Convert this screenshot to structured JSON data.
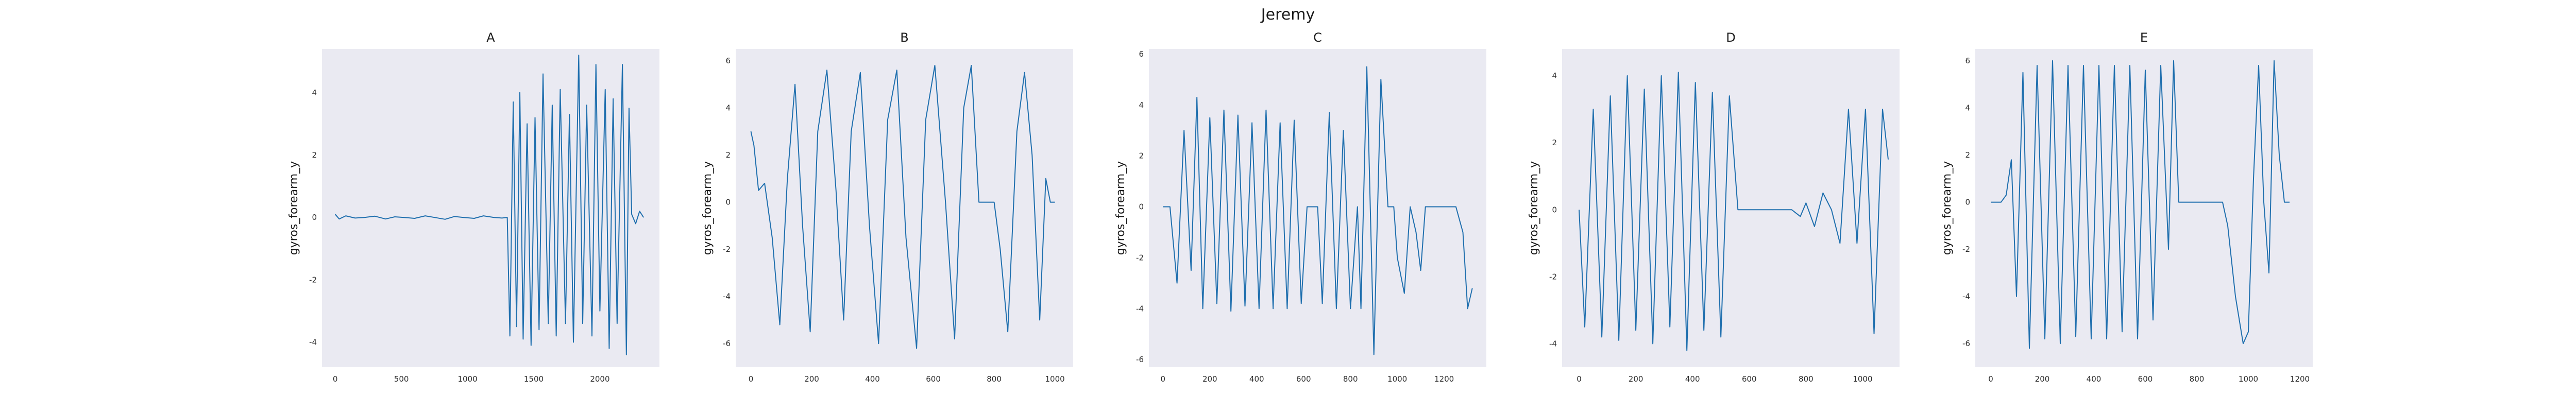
{
  "figure": {
    "title": "Jeremy"
  },
  "colors": {
    "panel_background": "#eaeaf2",
    "line": "#1f6fae"
  },
  "chart_data": [
    {
      "type": "line",
      "title": "A",
      "ylabel": "gyros_forearm_y",
      "xlabel": "",
      "grid": false,
      "xlim": [
        -100,
        2450
      ],
      "ylim": [
        -4.8,
        5.4
      ],
      "xticks": [
        0,
        500,
        1000,
        1500,
        2000
      ],
      "yticks": [
        -4,
        -2,
        0,
        2,
        4
      ],
      "points": [
        [
          0,
          0.1
        ],
        [
          30,
          -0.05
        ],
        [
          80,
          0.05
        ],
        [
          150,
          -0.02
        ],
        [
          220,
          0.0
        ],
        [
          300,
          0.04
        ],
        [
          380,
          -0.05
        ],
        [
          450,
          0.02
        ],
        [
          520,
          0.0
        ],
        [
          600,
          -0.03
        ],
        [
          680,
          0.05
        ],
        [
          750,
          0.0
        ],
        [
          830,
          -0.06
        ],
        [
          900,
          0.03
        ],
        [
          970,
          0.0
        ],
        [
          1050,
          -0.03
        ],
        [
          1120,
          0.05
        ],
        [
          1200,
          0.0
        ],
        [
          1260,
          -0.02
        ],
        [
          1300,
          0.0
        ],
        [
          1320,
          -3.8
        ],
        [
          1345,
          3.7
        ],
        [
          1370,
          -3.5
        ],
        [
          1395,
          4.0
        ],
        [
          1420,
          -3.9
        ],
        [
          1450,
          3.0
        ],
        [
          1480,
          -4.1
        ],
        [
          1510,
          3.2
        ],
        [
          1540,
          -3.6
        ],
        [
          1570,
          4.6
        ],
        [
          1610,
          -3.4
        ],
        [
          1640,
          3.6
        ],
        [
          1670,
          -3.8
        ],
        [
          1700,
          4.1
        ],
        [
          1740,
          -3.4
        ],
        [
          1770,
          3.3
        ],
        [
          1800,
          -4.0
        ],
        [
          1840,
          5.2
        ],
        [
          1870,
          -3.4
        ],
        [
          1900,
          3.6
        ],
        [
          1940,
          -3.8
        ],
        [
          1970,
          4.9
        ],
        [
          2000,
          -3.0
        ],
        [
          2040,
          4.1
        ],
        [
          2070,
          -4.2
        ],
        [
          2100,
          3.8
        ],
        [
          2130,
          -3.4
        ],
        [
          2170,
          4.9
        ],
        [
          2200,
          -4.4
        ],
        [
          2220,
          3.5
        ],
        [
          2240,
          0.1
        ],
        [
          2270,
          -0.2
        ],
        [
          2300,
          0.2
        ],
        [
          2330,
          0.0
        ]
      ]
    },
    {
      "type": "line",
      "title": "B",
      "ylabel": "gyros_forearm_y",
      "xlabel": "",
      "grid": false,
      "xlim": [
        -50,
        1060
      ],
      "ylim": [
        -7.0,
        6.5
      ],
      "xticks": [
        0,
        200,
        400,
        600,
        800,
        1000
      ],
      "yticks": [
        -6,
        -4,
        -2,
        0,
        2,
        4,
        6
      ],
      "points": [
        [
          0,
          3.0
        ],
        [
          10,
          2.4
        ],
        [
          25,
          0.5
        ],
        [
          45,
          0.8
        ],
        [
          70,
          -1.5
        ],
        [
          95,
          -5.2
        ],
        [
          120,
          1.0
        ],
        [
          145,
          5.0
        ],
        [
          170,
          -1.0
        ],
        [
          195,
          -5.5
        ],
        [
          220,
          3.0
        ],
        [
          250,
          5.6
        ],
        [
          280,
          0.5
        ],
        [
          305,
          -5.0
        ],
        [
          330,
          3.0
        ],
        [
          360,
          5.5
        ],
        [
          390,
          -1.0
        ],
        [
          420,
          -6.0
        ],
        [
          450,
          3.5
        ],
        [
          480,
          5.6
        ],
        [
          510,
          -1.5
        ],
        [
          545,
          -6.2
        ],
        [
          575,
          3.5
        ],
        [
          605,
          5.8
        ],
        [
          640,
          0.0
        ],
        [
          670,
          -5.8
        ],
        [
          700,
          4.0
        ],
        [
          725,
          5.8
        ],
        [
          750,
          0.0
        ],
        [
          770,
          0.0
        ],
        [
          800,
          0.0
        ],
        [
          820,
          -2.0
        ],
        [
          845,
          -5.5
        ],
        [
          875,
          3.0
        ],
        [
          900,
          5.5
        ],
        [
          925,
          2.0
        ],
        [
          950,
          -5.0
        ],
        [
          970,
          1.0
        ],
        [
          985,
          0.0
        ],
        [
          1000,
          0.0
        ]
      ]
    },
    {
      "type": "line",
      "title": "C",
      "ylabel": "gyros_forearm_y",
      "xlabel": "",
      "grid": false,
      "xlim": [
        -60,
        1380
      ],
      "ylim": [
        -6.3,
        6.2
      ],
      "xticks": [
        0,
        200,
        400,
        600,
        800,
        1000,
        1200
      ],
      "yticks": [
        -6,
        -4,
        -2,
        0,
        2,
        4,
        6
      ],
      "points": [
        [
          0,
          0.0
        ],
        [
          30,
          0.0
        ],
        [
          60,
          -3.0
        ],
        [
          90,
          3.0
        ],
        [
          120,
          -2.5
        ],
        [
          145,
          4.3
        ],
        [
          170,
          -4.0
        ],
        [
          200,
          3.5
        ],
        [
          230,
          -3.8
        ],
        [
          260,
          3.8
        ],
        [
          290,
          -4.1
        ],
        [
          320,
          3.6
        ],
        [
          350,
          -3.9
        ],
        [
          380,
          3.3
        ],
        [
          410,
          -4.0
        ],
        [
          440,
          3.8
        ],
        [
          470,
          -4.0
        ],
        [
          500,
          3.3
        ],
        [
          530,
          -4.0
        ],
        [
          560,
          3.4
        ],
        [
          590,
          -3.8
        ],
        [
          615,
          0.0
        ],
        [
          640,
          0.0
        ],
        [
          660,
          0.0
        ],
        [
          680,
          -3.8
        ],
        [
          710,
          3.7
        ],
        [
          740,
          -4.0
        ],
        [
          770,
          3.0
        ],
        [
          800,
          -4.0
        ],
        [
          830,
          0.0
        ],
        [
          845,
          -4.0
        ],
        [
          870,
          5.5
        ],
        [
          900,
          -5.8
        ],
        [
          930,
          5.0
        ],
        [
          960,
          0.0
        ],
        [
          985,
          0.0
        ],
        [
          1000,
          -2.0
        ],
        [
          1030,
          -3.4
        ],
        [
          1055,
          0.0
        ],
        [
          1080,
          -1.0
        ],
        [
          1100,
          -2.5
        ],
        [
          1120,
          0.0
        ],
        [
          1150,
          0.0
        ],
        [
          1200,
          0.0
        ],
        [
          1250,
          0.0
        ],
        [
          1280,
          -1.0
        ],
        [
          1300,
          -4.0
        ],
        [
          1320,
          -3.2
        ]
      ]
    },
    {
      "type": "line",
      "title": "D",
      "ylabel": "gyros_forearm_y",
      "xlabel": "",
      "grid": false,
      "xlim": [
        -60,
        1130
      ],
      "ylim": [
        -4.7,
        4.8
      ],
      "xticks": [
        0,
        200,
        400,
        600,
        800,
        1000
      ],
      "yticks": [
        -4,
        -2,
        0,
        2,
        4
      ],
      "points": [
        [
          0,
          0.0
        ],
        [
          20,
          -3.5
        ],
        [
          50,
          3.0
        ],
        [
          80,
          -3.8
        ],
        [
          110,
          3.4
        ],
        [
          140,
          -3.9
        ],
        [
          170,
          4.0
        ],
        [
          200,
          -3.6
        ],
        [
          230,
          3.6
        ],
        [
          260,
          -4.0
        ],
        [
          290,
          4.0
        ],
        [
          320,
          -3.5
        ],
        [
          350,
          4.1
        ],
        [
          380,
          -4.2
        ],
        [
          410,
          3.8
        ],
        [
          440,
          -3.6
        ],
        [
          470,
          3.5
        ],
        [
          500,
          -3.8
        ],
        [
          530,
          3.4
        ],
        [
          560,
          0.0
        ],
        [
          600,
          0.0
        ],
        [
          650,
          0.0
        ],
        [
          700,
          0.0
        ],
        [
          750,
          0.0
        ],
        [
          780,
          -0.2
        ],
        [
          800,
          0.2
        ],
        [
          830,
          -0.5
        ],
        [
          860,
          0.5
        ],
        [
          890,
          0.0
        ],
        [
          920,
          -1.0
        ],
        [
          950,
          3.0
        ],
        [
          980,
          -1.0
        ],
        [
          1010,
          3.0
        ],
        [
          1040,
          -3.7
        ],
        [
          1070,
          3.0
        ],
        [
          1090,
          1.5
        ]
      ]
    },
    {
      "type": "line",
      "title": "E",
      "ylabel": "gyros_forearm_y",
      "xlabel": "",
      "grid": false,
      "xlim": [
        -60,
        1250
      ],
      "ylim": [
        -7.0,
        6.5
      ],
      "xticks": [
        0,
        200,
        400,
        600,
        800,
        1000,
        1200
      ],
      "yticks": [
        -6,
        -4,
        -2,
        0,
        2,
        4,
        6
      ],
      "points": [
        [
          0,
          0.0
        ],
        [
          20,
          0.0
        ],
        [
          40,
          0.0
        ],
        [
          60,
          0.3
        ],
        [
          80,
          1.8
        ],
        [
          100,
          -4.0
        ],
        [
          125,
          5.5
        ],
        [
          150,
          -6.2
        ],
        [
          180,
          5.8
        ],
        [
          210,
          -5.8
        ],
        [
          240,
          6.0
        ],
        [
          270,
          -6.0
        ],
        [
          300,
          5.8
        ],
        [
          330,
          -5.7
        ],
        [
          360,
          5.8
        ],
        [
          390,
          -5.8
        ],
        [
          420,
          5.8
        ],
        [
          450,
          -5.8
        ],
        [
          480,
          5.8
        ],
        [
          510,
          -5.5
        ],
        [
          540,
          5.8
        ],
        [
          570,
          -5.8
        ],
        [
          600,
          5.6
        ],
        [
          630,
          -5.0
        ],
        [
          660,
          5.8
        ],
        [
          690,
          -2.0
        ],
        [
          710,
          6.0
        ],
        [
          730,
          0.0
        ],
        [
          760,
          0.0
        ],
        [
          800,
          0.0
        ],
        [
          850,
          0.0
        ],
        [
          900,
          0.0
        ],
        [
          920,
          -1.0
        ],
        [
          950,
          -4.0
        ],
        [
          980,
          -6.0
        ],
        [
          1000,
          -5.5
        ],
        [
          1020,
          1.0
        ],
        [
          1040,
          5.8
        ],
        [
          1060,
          0.0
        ],
        [
          1080,
          -3.0
        ],
        [
          1100,
          6.0
        ],
        [
          1120,
          2.0
        ],
        [
          1140,
          0.0
        ],
        [
          1160,
          0.0
        ]
      ]
    }
  ]
}
